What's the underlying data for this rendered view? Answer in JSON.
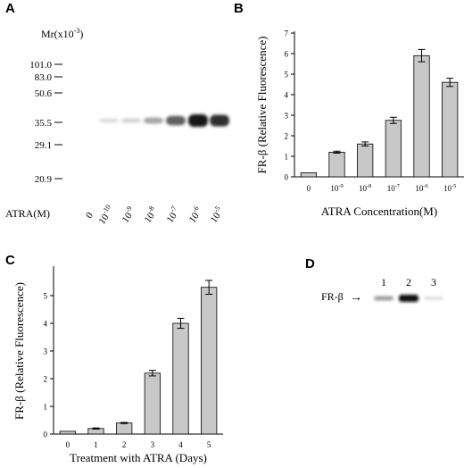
{
  "panels": {
    "a": {
      "letter": "A",
      "mr_label": "Mr(x10",
      "mr_exp": "-3",
      "mr_close": ")",
      "markers": [
        "101.0",
        "83.0",
        "50.6",
        "35.5",
        "29.1",
        "20.9"
      ],
      "row_label": "ATRA(M)",
      "lanes": [
        {
          "base": "0",
          "exp": ""
        },
        {
          "base": "10",
          "exp": "-10"
        },
        {
          "base": "10",
          "exp": "-9"
        },
        {
          "base": "10",
          "exp": "-8"
        },
        {
          "base": "10",
          "exp": "-7"
        },
        {
          "base": "10",
          "exp": "-6"
        },
        {
          "base": "10",
          "exp": "-5"
        }
      ],
      "band_intensity": [
        0,
        0.04,
        0.08,
        0.3,
        0.65,
        1.0,
        0.9
      ]
    },
    "b": {
      "letter": "B"
    },
    "c": {
      "letter": "C"
    },
    "d": {
      "letter": "D",
      "lane_numbers": [
        "1",
        "2",
        "3"
      ],
      "label": "FR-β",
      "arrow": "→",
      "band_intensity": [
        0.35,
        1.0,
        0.05
      ]
    }
  },
  "chart_data": [
    {
      "type": "bar",
      "panel": "B",
      "categories": [
        {
          "base": "0",
          "exp": ""
        },
        {
          "base": "10",
          "exp": "-9"
        },
        {
          "base": "10",
          "exp": "-8"
        },
        {
          "base": "10",
          "exp": "-7"
        },
        {
          "base": "10",
          "exp": "-6"
        },
        {
          "base": "10",
          "exp": "-5"
        }
      ],
      "values": [
        0.2,
        1.2,
        1.6,
        2.75,
        5.9,
        4.6
      ],
      "errors": [
        0,
        0.05,
        0.1,
        0.15,
        0.3,
        0.2
      ],
      "ylabel": "FR-β (Relative Fluorescence)",
      "xlabel": "ATRA Concentration(M)",
      "ylim": [
        0,
        7
      ],
      "yticks": [
        0,
        1,
        2,
        3,
        4,
        5,
        6,
        7
      ],
      "bar_color": "#c8c8c8"
    },
    {
      "type": "bar",
      "panel": "C",
      "categories": [
        "0",
        "1",
        "2",
        "3",
        "4",
        "5"
      ],
      "values": [
        0.1,
        0.2,
        0.4,
        2.2,
        4.0,
        5.3
      ],
      "errors": [
        0,
        0.02,
        0.02,
        0.1,
        0.18,
        0.25
      ],
      "ylabel": "FR-β (Relative Fluorescence)",
      "xlabel": "Treatment with ATRA (Days)",
      "ylim": [
        0,
        6
      ],
      "yticks": [
        0,
        1,
        2,
        3,
        4,
        5
      ],
      "bar_color": "#c8c8c8"
    }
  ]
}
